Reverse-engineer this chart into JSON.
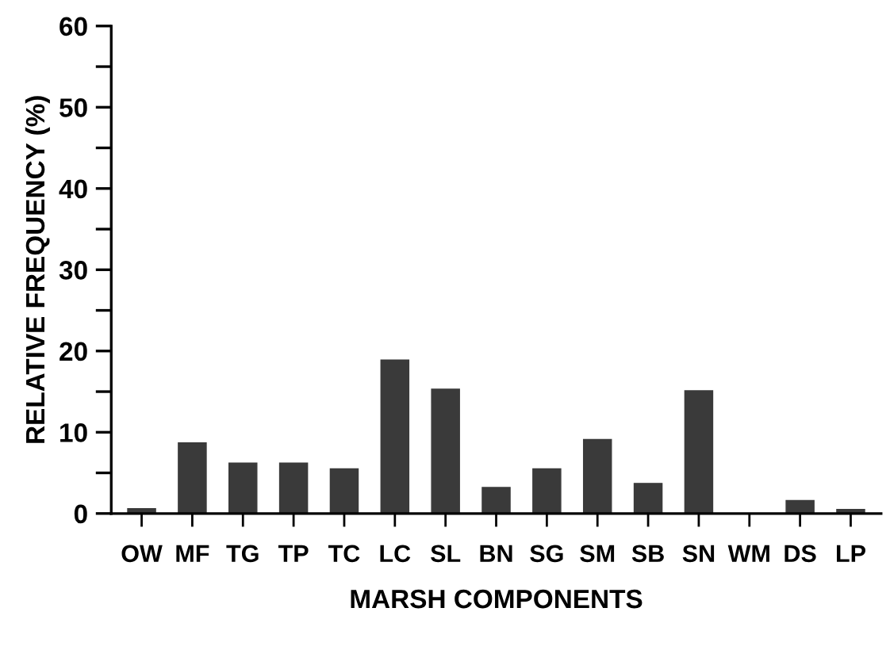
{
  "chart_data": {
    "type": "bar",
    "xlabel": "MARSH COMPONENTS",
    "ylabel": "RELATIVE FREQUENCY (%)",
    "categories": [
      "OW",
      "MF",
      "TG",
      "TP",
      "TC",
      "LC",
      "SL",
      "BN",
      "SG",
      "SM",
      "SB",
      "SN",
      "WM",
      "DS",
      "LP"
    ],
    "values": [
      0.6,
      8.7,
      6.2,
      6.2,
      5.5,
      18.9,
      15.3,
      3.2,
      5.5,
      9.1,
      3.7,
      15.1,
      0,
      1.6,
      0.5
    ],
    "color": "#3a3a3a",
    "ylim": [
      0,
      60
    ],
    "yticks": [
      0,
      {
        "value": 5,
        "label": null
      },
      10,
      {
        "value": 15,
        "label": null
      },
      20,
      {
        "value": 25,
        "label": null
      },
      30,
      {
        "value": 35,
        "label": null
      },
      40,
      {
        "value": 45,
        "label": null
      },
      50,
      {
        "value": 55,
        "label": null
      },
      60
    ],
    "grid": false
  }
}
